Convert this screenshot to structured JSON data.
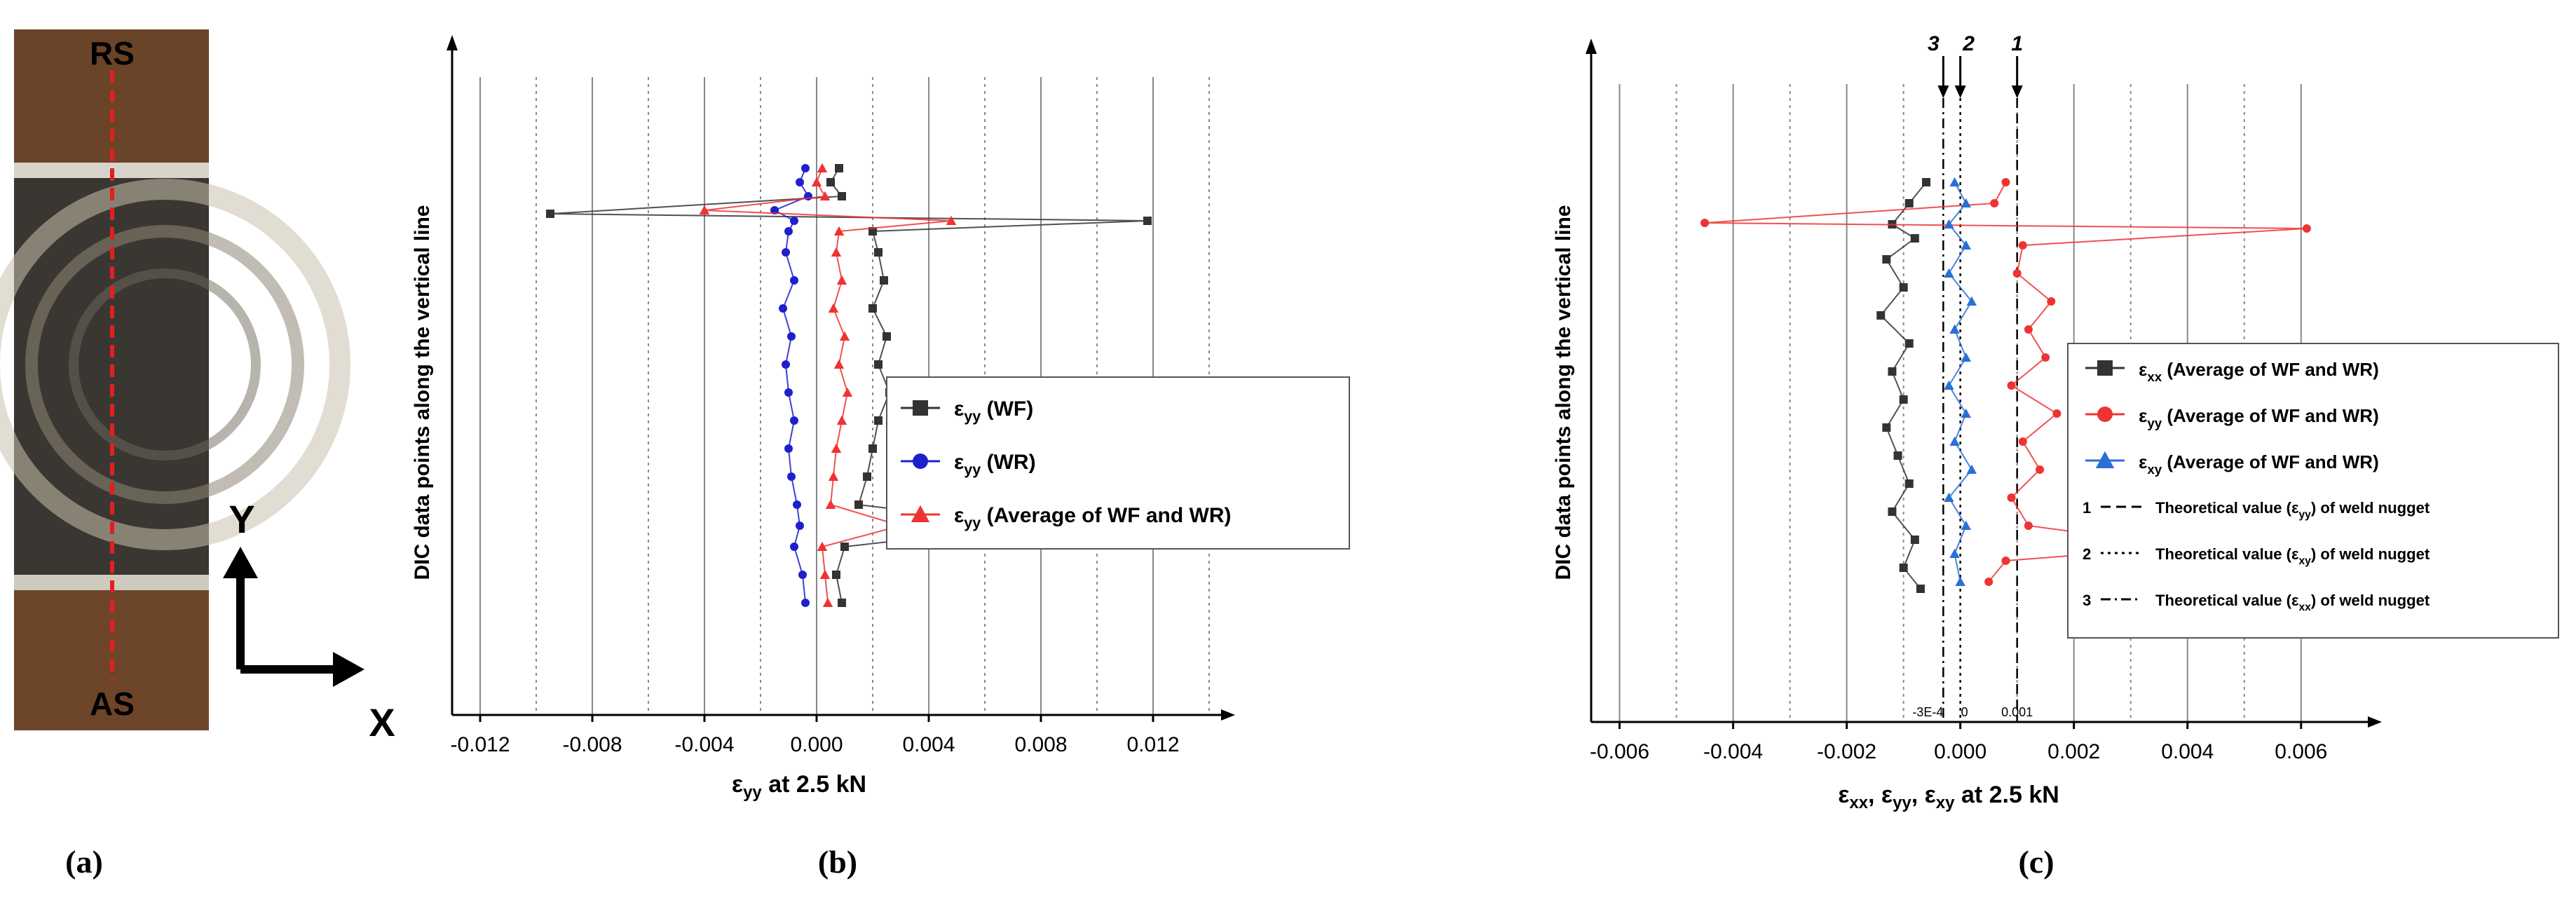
{
  "panel_labels": {
    "a": "(a)",
    "b": "(b)",
    "c": "(c)"
  },
  "photo": {
    "top_label": "RS",
    "bottom_label": "AS",
    "y_axis_label": "Y",
    "x_axis_label": "X",
    "colors": {
      "base": "#5b3a22",
      "weld": "#3a3732",
      "line": "#e02020",
      "label": "#ffff33"
    }
  },
  "chart_data": [
    {
      "type": "scatter",
      "panel": "(b)",
      "xlabel": "ε",
      "xlabel_sub": "yy",
      "xlabel_suffix": " at 2.5 kN",
      "ylabel": "DIC data points along the vertical line",
      "xlim": [
        -0.013,
        0.0145
      ],
      "xticks": [
        "-0.012",
        "-0.008",
        "-0.004",
        "0.000",
        "0.004",
        "0.008",
        "0.012"
      ],
      "xtick_values": [
        -0.012,
        -0.008,
        -0.004,
        0.0,
        0.004,
        0.008,
        0.012
      ],
      "gridlines": [
        {
          "x": -0.012,
          "style": "solid"
        },
        {
          "x": -0.01,
          "style": "dotted"
        },
        {
          "x": -0.008,
          "style": "solid"
        },
        {
          "x": -0.006,
          "style": "dotted"
        },
        {
          "x": -0.004,
          "style": "solid"
        },
        {
          "x": -0.002,
          "style": "dotted"
        },
        {
          "x": 0.0,
          "style": "solid"
        },
        {
          "x": 0.002,
          "style": "dotted"
        },
        {
          "x": 0.004,
          "style": "solid"
        },
        {
          "x": 0.006,
          "style": "dotted"
        },
        {
          "x": 0.008,
          "style": "solid"
        },
        {
          "x": 0.01,
          "style": "dotted"
        },
        {
          "x": 0.012,
          "style": "solid"
        },
        {
          "x": 0.014,
          "style": "dotted"
        }
      ],
      "legend_position": "center-right",
      "series": [
        {
          "name": "(WF)",
          "symbol": "ε",
          "sub": "yy",
          "color": "#333333",
          "marker": "square",
          "points": [
            [
              0.0008,
              100
            ],
            [
              0.0005,
              120
            ],
            [
              0.0009,
              140
            ],
            [
              -0.0095,
              165
            ],
            [
              0.0118,
              175
            ],
            [
              0.002,
              190
            ],
            [
              0.0022,
              220
            ],
            [
              0.0024,
              260
            ],
            [
              0.002,
              300
            ],
            [
              0.0025,
              340
            ],
            [
              0.0022,
              380
            ],
            [
              0.0026,
              420
            ],
            [
              0.0022,
              460
            ],
            [
              0.002,
              500
            ],
            [
              0.0018,
              540
            ],
            [
              0.0015,
              580
            ],
            [
              0.0076,
              610
            ],
            [
              0.001,
              640
            ],
            [
              0.0007,
              680
            ],
            [
              0.0009,
              720
            ]
          ]
        },
        {
          "name": "(WR)",
          "symbol": "ε",
          "sub": "yy",
          "color": "#1f1fcc",
          "marker": "circle",
          "points": [
            [
              -0.0004,
              100
            ],
            [
              -0.0006,
              120
            ],
            [
              -0.0003,
              140
            ],
            [
              -0.0015,
              160
            ],
            [
              -0.0008,
              175
            ],
            [
              -0.001,
              190
            ],
            [
              -0.0011,
              220
            ],
            [
              -0.0008,
              260
            ],
            [
              -0.0012,
              300
            ],
            [
              -0.0009,
              340
            ],
            [
              -0.0011,
              380
            ],
            [
              -0.001,
              420
            ],
            [
              -0.0008,
              460
            ],
            [
              -0.001,
              500
            ],
            [
              -0.0009,
              540
            ],
            [
              -0.0007,
              580
            ],
            [
              -0.0006,
              610
            ],
            [
              -0.0008,
              640
            ],
            [
              -0.0005,
              680
            ],
            [
              -0.0004,
              720
            ]
          ]
        },
        {
          "name": "(Average of WF and WR)",
          "symbol": "ε",
          "sub": "yy",
          "color": "#ee3333",
          "marker": "triangle",
          "points": [
            [
              0.0002,
              100
            ],
            [
              0.0,
              120
            ],
            [
              0.0003,
              140
            ],
            [
              -0.004,
              160
            ],
            [
              0.0048,
              175
            ],
            [
              0.0008,
              190
            ],
            [
              0.0007,
              220
            ],
            [
              0.0009,
              260
            ],
            [
              0.0006,
              300
            ],
            [
              0.001,
              340
            ],
            [
              0.0008,
              380
            ],
            [
              0.0011,
              420
            ],
            [
              0.0009,
              460
            ],
            [
              0.0007,
              500
            ],
            [
              0.0006,
              540
            ],
            [
              0.0005,
              580
            ],
            [
              0.003,
              610
            ],
            [
              0.0002,
              640
            ],
            [
              0.0003,
              680
            ],
            [
              0.0004,
              720
            ]
          ]
        }
      ]
    },
    {
      "type": "scatter",
      "panel": "(c)",
      "xlabel": "ε",
      "xlabel_sub": "xx",
      "xlabel_mid": ", ε",
      "xlabel_sub2": "yy",
      "xlabel_mid2": ", ε",
      "xlabel_sub3": "xy",
      "xlabel_suffix": " at 2.5 kN",
      "ylabel": "DIC data points along the vertical line",
      "xlim": [
        -0.0065,
        0.0072
      ],
      "xticks": [
        "-0.006",
        "-0.004",
        "-0.002",
        "0.000",
        "0.002",
        "0.004",
        "0.006"
      ],
      "xtick_values": [
        -0.006,
        -0.004,
        -0.002,
        0.0,
        0.002,
        0.004,
        0.006
      ],
      "extra_ticks": [
        "-3E-4",
        "0",
        "0.001"
      ],
      "extra_tick_values": [
        -0.0003,
        0.0,
        0.001
      ],
      "gridlines": [
        {
          "x": -0.006,
          "style": "solid"
        },
        {
          "x": -0.005,
          "style": "dotted"
        },
        {
          "x": -0.004,
          "style": "solid"
        },
        {
          "x": -0.003,
          "style": "dotted"
        },
        {
          "x": -0.002,
          "style": "solid"
        },
        {
          "x": -0.001,
          "style": "dotted"
        },
        {
          "x": 0.001,
          "style": "dotted"
        },
        {
          "x": 0.002,
          "style": "solid"
        },
        {
          "x": 0.003,
          "style": "dotted"
        },
        {
          "x": 0.004,
          "style": "solid"
        },
        {
          "x": 0.005,
          "style": "dotted"
        },
        {
          "x": 0.006,
          "style": "solid"
        }
      ],
      "reference_lines": [
        {
          "label": "1",
          "x": 0.001,
          "style": "dashed"
        },
        {
          "label": "2",
          "x": 0.0,
          "style": "dotted"
        },
        {
          "label": "3",
          "x": -0.0003,
          "style": "dashdot"
        }
      ],
      "legend_position": "center-right",
      "series": [
        {
          "name": "(Average of WF and WR)",
          "symbol": "ε",
          "sub": "xx",
          "color": "#333333",
          "marker": "square",
          "points": [
            [
              -0.0006,
              110
            ],
            [
              -0.0009,
              140
            ],
            [
              -0.0012,
              170
            ],
            [
              -0.0008,
              190
            ],
            [
              -0.0013,
              220
            ],
            [
              -0.001,
              260
            ],
            [
              -0.0014,
              300
            ],
            [
              -0.0009,
              340
            ],
            [
              -0.0012,
              380
            ],
            [
              -0.001,
              420
            ],
            [
              -0.0013,
              460
            ],
            [
              -0.0011,
              500
            ],
            [
              -0.0009,
              540
            ],
            [
              -0.0012,
              580
            ],
            [
              -0.0008,
              620
            ],
            [
              -0.001,
              660
            ],
            [
              -0.0007,
              690
            ]
          ]
        },
        {
          "name": "(Average of WF and WR)",
          "symbol": "ε",
          "sub": "yy",
          "color": "#ee3333",
          "marker": "circle",
          "points": [
            [
              0.0008,
              110
            ],
            [
              0.0006,
              140
            ],
            [
              -0.0045,
              168
            ],
            [
              0.0061,
              176
            ],
            [
              0.0011,
              200
            ],
            [
              0.001,
              240
            ],
            [
              0.0016,
              280
            ],
            [
              0.0012,
              320
            ],
            [
              0.0015,
              360
            ],
            [
              0.0009,
              400
            ],
            [
              0.0017,
              440
            ],
            [
              0.0011,
              480
            ],
            [
              0.0014,
              520
            ],
            [
              0.0009,
              560
            ],
            [
              0.0012,
              600
            ],
            [
              0.004,
              630
            ],
            [
              0.0008,
              650
            ],
            [
              0.0005,
              680
            ]
          ]
        },
        {
          "name": "(Average of WF and WR)",
          "symbol": "ε",
          "sub": "xy",
          "color": "#2a6fd6",
          "marker": "triangle",
          "points": [
            [
              -0.0001,
              110
            ],
            [
              0.0001,
              140
            ],
            [
              -0.0002,
              170
            ],
            [
              0.0001,
              200
            ],
            [
              -0.0002,
              240
            ],
            [
              0.0002,
              280
            ],
            [
              -0.0001,
              320
            ],
            [
              0.0001,
              360
            ],
            [
              -0.0002,
              400
            ],
            [
              0.0001,
              440
            ],
            [
              -0.0001,
              480
            ],
            [
              0.0002,
              520
            ],
            [
              -0.0002,
              560
            ],
            [
              0.0001,
              600
            ],
            [
              -0.0001,
              640
            ],
            [
              0.0,
              680
            ]
          ]
        }
      ],
      "legend_extra": [
        {
          "num": "1",
          "text": "Theoretical value (ε",
          "sub": "yy",
          "suffix": ") of weld nugget",
          "style": "dashed"
        },
        {
          "num": "2",
          "text": "Theoretical value (ε",
          "sub": "xy",
          "suffix": ") of weld nugget",
          "style": "dotted"
        },
        {
          "num": "3",
          "text": "Theoretical value (ε",
          "sub": "xx",
          "suffix": ") of weld nugget",
          "style": "dashdot"
        }
      ]
    }
  ]
}
